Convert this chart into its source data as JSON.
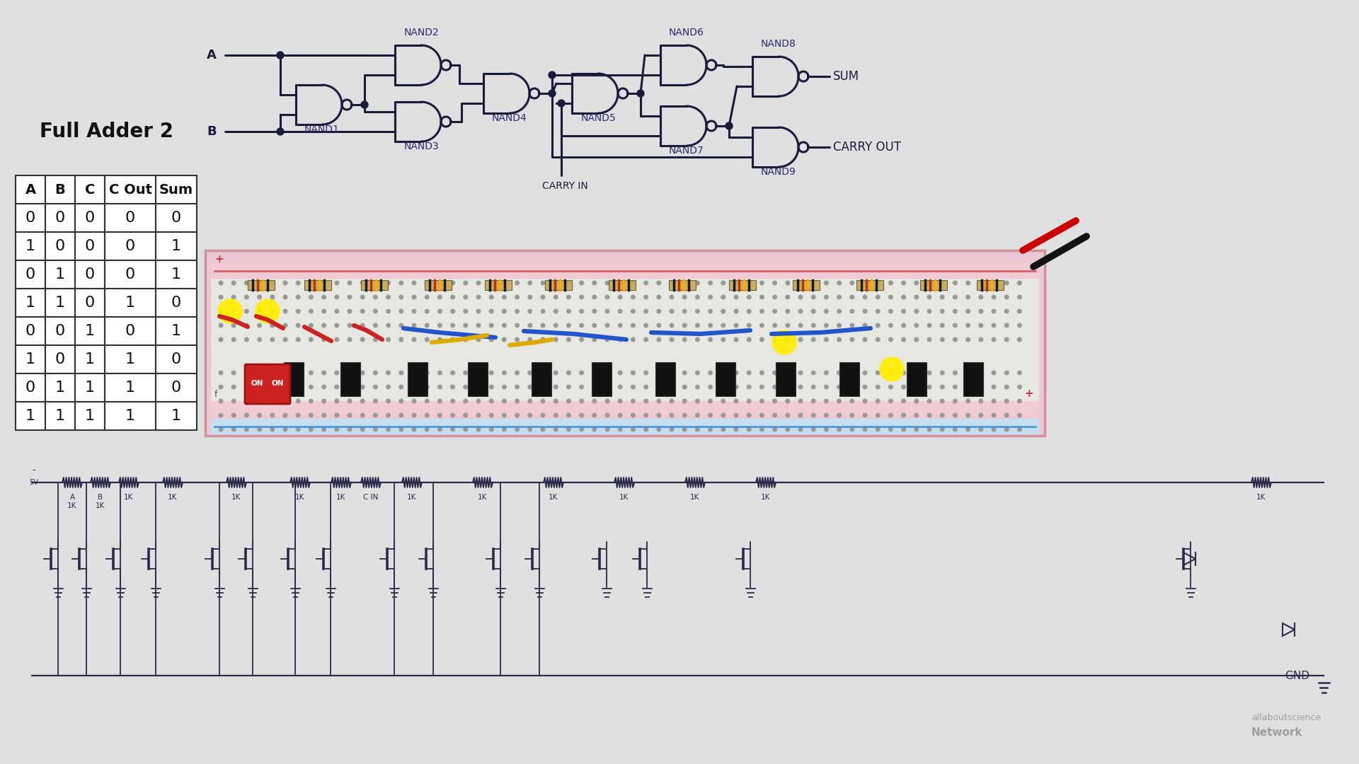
{
  "bg_color": "#e0e0e0",
  "title": "Full Adder 2",
  "table_headers": [
    "A",
    "B",
    "C",
    "C Out",
    "Sum"
  ],
  "table_data": [
    [
      0,
      0,
      0,
      0,
      0
    ],
    [
      1,
      0,
      0,
      0,
      1
    ],
    [
      0,
      1,
      0,
      0,
      1
    ],
    [
      1,
      1,
      0,
      1,
      0
    ],
    [
      0,
      0,
      1,
      0,
      1
    ],
    [
      1,
      0,
      1,
      1,
      0
    ],
    [
      0,
      1,
      1,
      1,
      0
    ],
    [
      1,
      1,
      1,
      1,
      1
    ]
  ],
  "gate_color": "#1a1a3a",
  "label_color": "#2a2a6e",
  "watermark_color": "#888888"
}
